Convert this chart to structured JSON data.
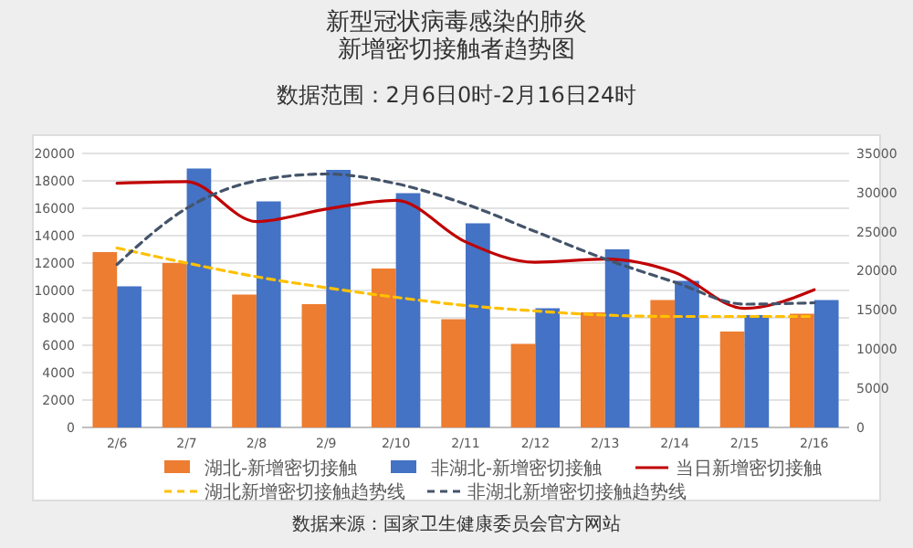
{
  "chart_data": {
    "type": "bar",
    "title": "新型冠状病毒感染的肺炎新增密切接触者趋势图",
    "subtitle": "数据范围：2月6日0时-2月16日24时",
    "annotations": [
      "数据来源：国家卫生健康委员会官方网站"
    ],
    "categories": [
      "2/6",
      "2/7",
      "2/8",
      "2/9",
      "2/10",
      "2/11",
      "2/12",
      "2/13",
      "2/14",
      "2/15",
      "2/16"
    ],
    "series": [
      {
        "name": "湖北-新增密切接触",
        "color": "#ed7d31",
        "values": [
          12800,
          12000,
          9700,
          9000,
          11600,
          7900,
          6100,
          8400,
          9300,
          7000,
          8300
        ]
      },
      {
        "name": "非湖北-新增密切接触",
        "color": "#4472c4",
        "values": [
          10300,
          18900,
          16500,
          18800,
          17100,
          14900,
          8700,
          13000,
          10700,
          8200,
          9300
        ]
      },
      {
        "name": "当日新增密切接触",
        "type": "line",
        "axis": "y2",
        "color": "#c00000",
        "line_style": "solid",
        "values": [
          31200,
          31400,
          26300,
          27900,
          29000,
          23700,
          21100,
          21500,
          19800,
          15200,
          17600
        ]
      },
      {
        "name": "湖北新增密切接触趋势线",
        "type": "line",
        "color": "#ffc000",
        "line_style": "dashed",
        "values": [
          13100,
          12000,
          11000,
          10200,
          9500,
          8900,
          8500,
          8200,
          8100,
          8100,
          8100
        ]
      },
      {
        "name": "非湖北新增密切接触趋势线",
        "type": "line",
        "color": "#44546a",
        "line_style": "dashed",
        "values": [
          11900,
          16000,
          18000,
          18500,
          17800,
          16300,
          14300,
          12300,
          10600,
          9000,
          9100
        ]
      }
    ],
    "ylim": [
      0,
      20000
    ],
    "yticks": [
      0,
      2000,
      4000,
      6000,
      8000,
      10000,
      12000,
      14000,
      16000,
      18000,
      20000
    ],
    "y2lim": [
      0,
      35000
    ],
    "y2ticks": [
      0,
      5000,
      10000,
      15000,
      20000,
      25000,
      30000,
      35000
    ],
    "grid": "y",
    "legend": "bottom",
    "marker": "none"
  }
}
